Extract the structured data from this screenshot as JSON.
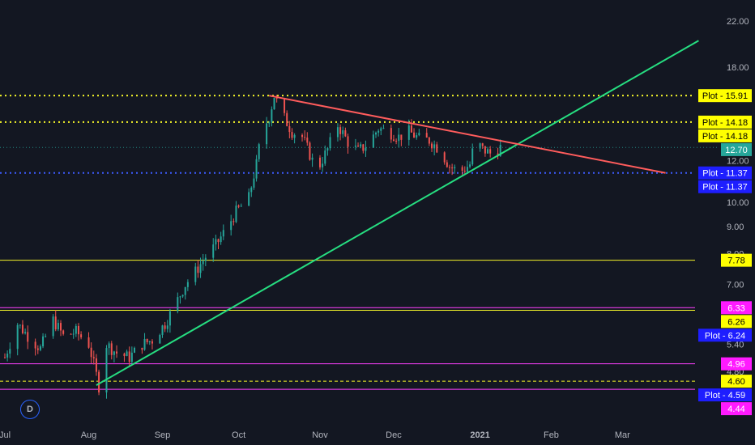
{
  "chart_data": {
    "type": "candlestick",
    "y_axis": {
      "scale": "log",
      "range": [
        4.25,
        24.0
      ],
      "tick_labels": [
        "22.00",
        "18.00",
        "12.00",
        "10.00",
        "9.00",
        "8.00",
        "7.00",
        "5.40",
        "4.80"
      ],
      "tick_values": [
        22.0,
        18.0,
        12.0,
        10.0,
        9.0,
        8.0,
        7.0,
        5.4,
        4.8
      ]
    },
    "x_axis": {
      "tick_labels": [
        "Jul",
        "Aug",
        "Sep",
        "Oct",
        "Nov",
        "Dec",
        "2021",
        "Feb",
        "Mar"
      ],
      "tick_dates": [
        "2020-07-01",
        "2020-08-03",
        "2020-09-01",
        "2020-10-01",
        "2020-11-02",
        "2020-12-01",
        "2021-01-04",
        "2021-02-01",
        "2021-03-01"
      ]
    },
    "interval_label": "D",
    "price_path": [
      [
        "2020-07-01",
        5.1
      ],
      [
        "2020-07-06",
        5.9
      ],
      [
        "2020-07-10",
        5.6
      ],
      [
        "2020-07-15",
        5.3
      ],
      [
        "2020-07-20",
        6.0
      ],
      [
        "2020-07-24",
        5.6
      ],
      [
        "2020-07-29",
        5.7
      ],
      [
        "2020-08-03",
        5.4
      ],
      [
        "2020-08-07",
        4.5
      ],
      [
        "2020-08-10",
        5.4
      ],
      [
        "2020-08-14",
        5.2
      ],
      [
        "2020-08-19",
        5.1
      ],
      [
        "2020-08-24",
        5.4
      ],
      [
        "2020-08-28",
        5.5
      ],
      [
        "2020-09-02",
        5.9
      ],
      [
        "2020-09-06",
        6.4
      ],
      [
        "2020-09-10",
        7.0
      ],
      [
        "2020-09-14",
        7.4
      ],
      [
        "2020-09-18",
        7.9
      ],
      [
        "2020-09-22",
        8.3
      ],
      [
        "2020-09-26",
        8.9
      ],
      [
        "2020-09-30",
        9.6
      ],
      [
        "2020-10-05",
        10.2
      ],
      [
        "2020-10-08",
        11.8
      ],
      [
        "2020-10-10",
        13.5
      ],
      [
        "2020-10-13",
        14.5
      ],
      [
        "2020-10-15",
        15.9
      ],
      [
        "2020-10-18",
        14.7
      ],
      [
        "2020-10-22",
        13.6
      ],
      [
        "2020-10-26",
        13.3
      ],
      [
        "2020-10-30",
        12.0
      ],
      [
        "2020-11-02",
        11.8
      ],
      [
        "2020-11-05",
        12.6
      ],
      [
        "2020-11-09",
        14.0
      ],
      [
        "2020-11-13",
        13.0
      ],
      [
        "2020-11-17",
        12.5
      ],
      [
        "2020-11-21",
        12.9
      ],
      [
        "2020-11-25",
        13.8
      ],
      [
        "2020-11-29",
        13.6
      ],
      [
        "2020-12-03",
        13.3
      ],
      [
        "2020-12-07",
        13.6
      ],
      [
        "2020-12-11",
        13.2
      ],
      [
        "2020-12-15",
        13.1
      ],
      [
        "2020-12-19",
        12.6
      ],
      [
        "2020-12-23",
        11.7
      ],
      [
        "2020-12-27",
        11.4
      ],
      [
        "2020-12-31",
        11.8
      ],
      [
        "2021-01-02",
        13.1
      ],
      [
        "2021-01-05",
        12.6
      ],
      [
        "2021-01-09",
        12.3
      ],
      [
        "2021-01-12",
        12.7
      ]
    ],
    "last_price": {
      "value": 12.7,
      "label": "12.70",
      "color": "#26a69a"
    },
    "horizontal_lines": [
      {
        "value": 15.91,
        "label": "Plot - 15.91",
        "color": "#f5f52a",
        "style": "dotted",
        "tag_bg": "#ffff00",
        "tag_fg": "#000000"
      },
      {
        "value": 14.18,
        "label": "Plot - 14.18",
        "color": "#f5f52a",
        "style": "dotted",
        "tag_bg": "#ffff00",
        "tag_fg": "#000000"
      },
      {
        "value": 14.18,
        "label": "Plot - 14.18",
        "color": "#f5f52a",
        "style": "none",
        "tag_bg": "#ffff00",
        "tag_fg": "#000000"
      },
      {
        "value": 11.37,
        "label": "Plot - 11.37",
        "color": "#3d5bff",
        "style": "dotted",
        "tag_bg": "#1e1eff",
        "tag_fg": "#ffffff"
      },
      {
        "value": 11.37,
        "label": "Plot - 11.37",
        "color": "#3d5bff",
        "style": "none",
        "tag_bg": "#1e1eff",
        "tag_fg": "#ffffff"
      },
      {
        "value": 7.78,
        "label": "7.78",
        "color": "#f5f52a",
        "style": "solid",
        "tag_bg": "#ffff00",
        "tag_fg": "#000000"
      },
      {
        "value": 6.33,
        "label": "6.33",
        "color": "#ff40ff",
        "style": "solid",
        "tag_bg": "#ff1aff",
        "tag_fg": "#ffffff"
      },
      {
        "value": 6.26,
        "label": "6.26",
        "color": "#f5f52a",
        "style": "solid",
        "tag_bg": "#ffff00",
        "tag_fg": "#000000"
      },
      {
        "value": 6.24,
        "label": "Plot - 6.24",
        "color": "#3d5bff",
        "style": "none",
        "tag_bg": "#1e1eff",
        "tag_fg": "#ffffff"
      },
      {
        "value": 4.96,
        "label": "4.96",
        "color": "#ff40ff",
        "style": "solid",
        "tag_bg": "#ff1aff",
        "tag_fg": "#ffffff"
      },
      {
        "value": 4.6,
        "label": "4.60",
        "color": "#f5f52a",
        "style": "dashed",
        "tag_bg": "#ffff00",
        "tag_fg": "#000000"
      },
      {
        "value": 4.59,
        "label": "Plot - 4.59",
        "color": "#3d5bff",
        "style": "none",
        "tag_bg": "#1e1eff",
        "tag_fg": "#ffffff"
      },
      {
        "value": 4.44,
        "label": "4.44",
        "color": "#ff40ff",
        "style": "solid",
        "tag_bg": "#ff1aff",
        "tag_fg": "#ffffff"
      }
    ],
    "trend_lines": [
      {
        "name": "",
        "color": "#26de81",
        "points": [
          [
            "2020-08-06",
            4.52
          ],
          [
            "2021-03-31",
            20.2
          ]
        ]
      },
      {
        "name": "",
        "color": "#ff5c5c",
        "points": [
          [
            "2020-10-13",
            15.91
          ],
          [
            "2021-03-18",
            11.37
          ]
        ]
      }
    ],
    "colors": {
      "up": "#26a69a",
      "down": "#ef5350",
      "background": "#131722",
      "axis_text": "#b2b5be"
    }
  }
}
